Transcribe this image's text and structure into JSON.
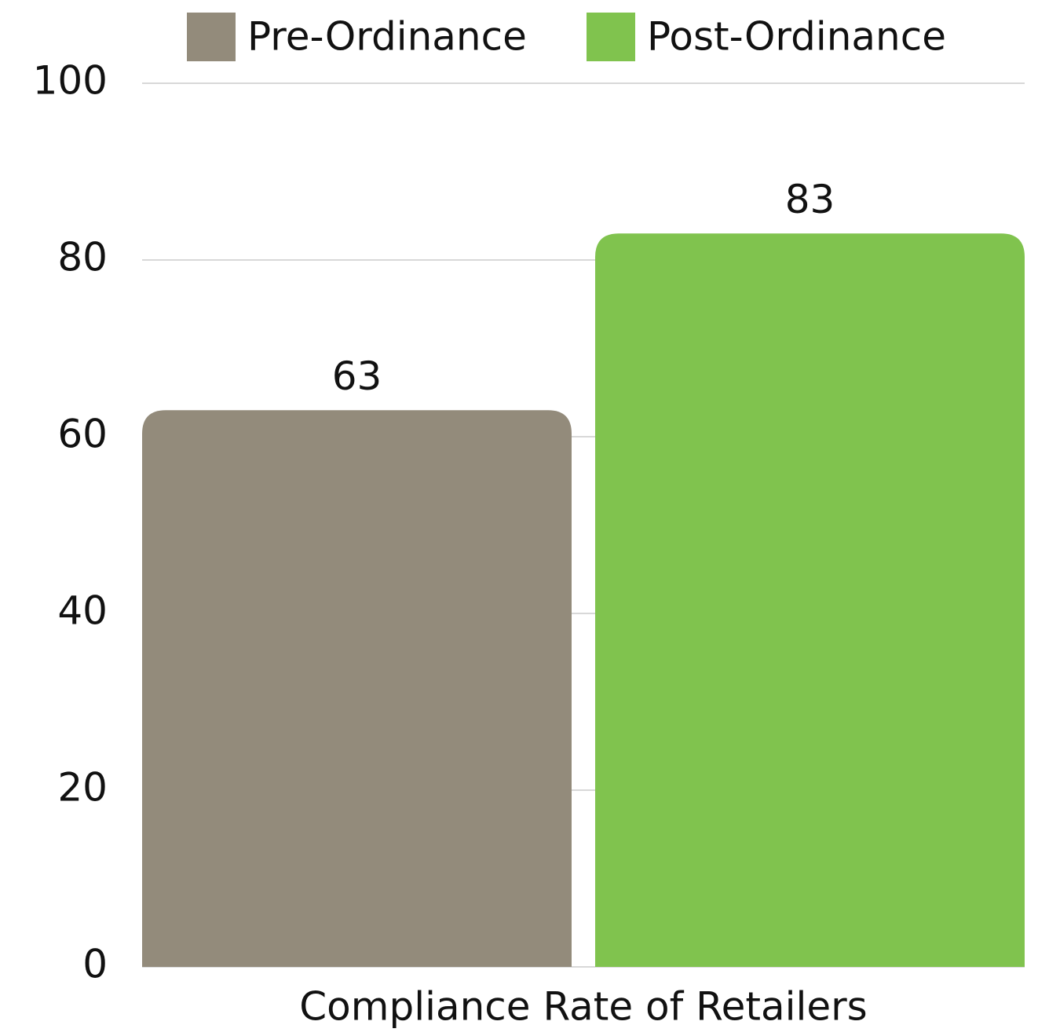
{
  "chart_data": {
    "type": "bar",
    "categories": [
      "Compliance Rate of Retailers"
    ],
    "series": [
      {
        "name": "Pre-Ordinance",
        "color": "#938b7b",
        "values": [
          63
        ]
      },
      {
        "name": "Post-Ordinance",
        "color": "#80c34e",
        "values": [
          83
        ]
      }
    ],
    "ylim": [
      0,
      100
    ],
    "yticks": [
      0,
      20,
      40,
      60,
      80,
      100
    ],
    "grid": true,
    "legend": "top",
    "data_labels": true
  }
}
